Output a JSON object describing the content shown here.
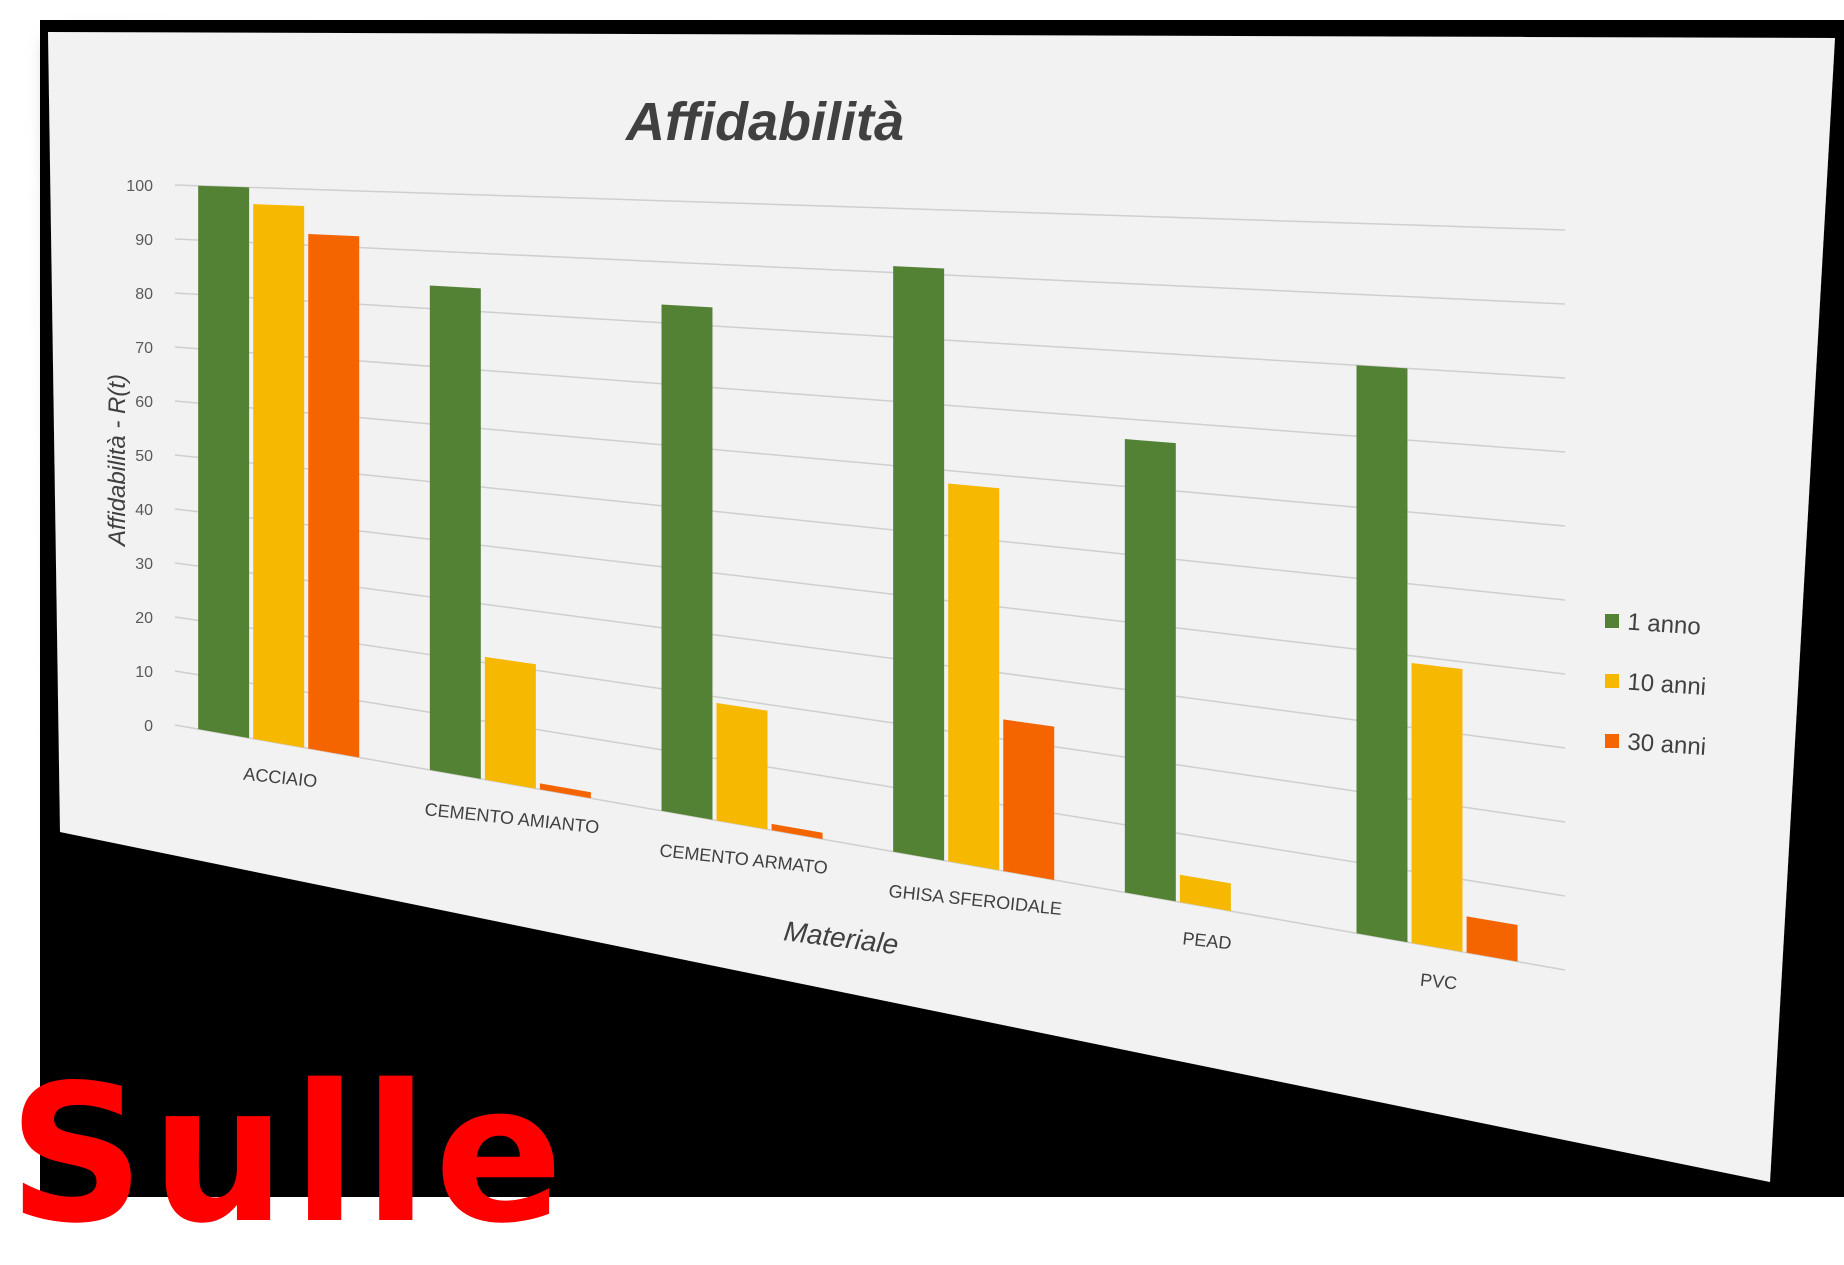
{
  "chart_data": {
    "type": "bar",
    "title": "Affidabilità",
    "xlabel": "Materiale",
    "ylabel": "Affidabilità - R(t)",
    "ylim": [
      0,
      100
    ],
    "yticks": [
      "0",
      "10",
      "20",
      "30",
      "40",
      "50",
      "60",
      "70",
      "80",
      "90",
      "100"
    ],
    "categories": [
      "ACCIAIO",
      "CEMENTO AMIANTO",
      "CEMENTO ARMATO",
      "GHISA SFEROIDALE",
      "PEAD",
      "PVC"
    ],
    "series": [
      {
        "name": "1  anno",
        "color": "#548235",
        "values": [
          100,
          84,
          83,
          91,
          67,
          80
        ]
      },
      {
        "name": "10 anni",
        "color": "#f6b800",
        "values": [
          97,
          21,
          19,
          58,
          4,
          39
        ]
      },
      {
        "name": "30 anni",
        "color": "#f46500",
        "values": [
          92,
          1,
          1,
          23,
          0,
          5
        ]
      }
    ],
    "grid": true,
    "legend_position": "right"
  },
  "overlay_text": "Sulle"
}
